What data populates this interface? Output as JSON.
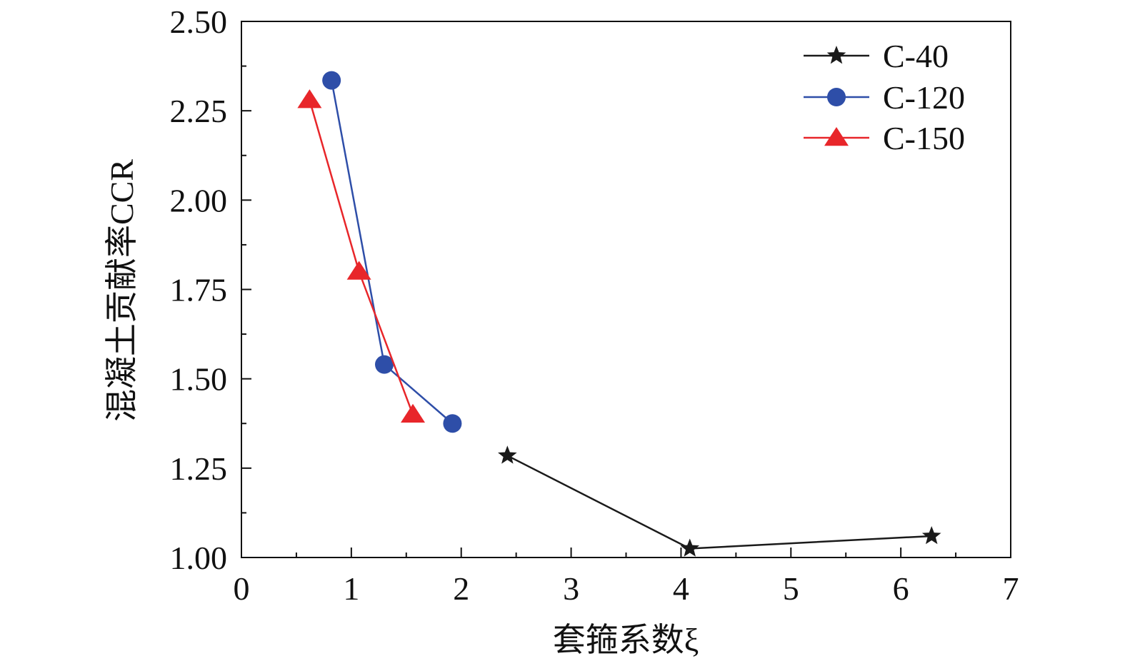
{
  "chart_data": {
    "type": "line",
    "title": "",
    "xlabel": "套箍系数ξ",
    "ylabel": "混凝土贡献率CCR",
    "xlim": [
      0,
      7
    ],
    "ylim": [
      1.0,
      2.5
    ],
    "x_ticks": [
      "0",
      "1",
      "2",
      "3",
      "4",
      "5",
      "6",
      "7"
    ],
    "y_ticks": [
      "1.00",
      "1.25",
      "1.50",
      "1.75",
      "2.00",
      "2.25",
      "2.50"
    ],
    "grid": false,
    "legend_position": "top-right",
    "series": [
      {
        "name": "C-40",
        "color": "#1a1a1a",
        "marker": "star",
        "points": [
          {
            "x": 2.42,
            "y": 1.285
          },
          {
            "x": 4.08,
            "y": 1.025
          },
          {
            "x": 6.28,
            "y": 1.06
          }
        ]
      },
      {
        "name": "C-120",
        "color": "#2e4ea8",
        "marker": "circle",
        "points": [
          {
            "x": 0.82,
            "y": 2.335
          },
          {
            "x": 1.3,
            "y": 1.54
          },
          {
            "x": 1.92,
            "y": 1.375
          }
        ]
      },
      {
        "name": "C-150",
        "color": "#e8262a",
        "marker": "triangle",
        "points": [
          {
            "x": 0.62,
            "y": 2.28
          },
          {
            "x": 1.07,
            "y": 1.8
          },
          {
            "x": 1.56,
            "y": 1.4
          }
        ]
      }
    ]
  }
}
